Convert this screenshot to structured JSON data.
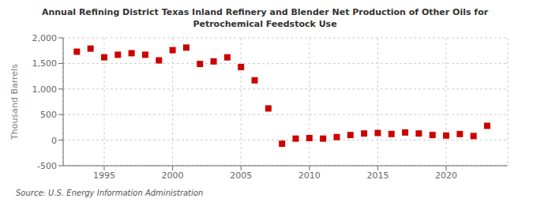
{
  "chart_data": {
    "type": "scatter",
    "title": "Annual Refining District Texas Inland Refinery and Blender Net Production of Other Oils for\nPetrochemical Feedstock Use",
    "ylabel": "Thousand Barrels",
    "annotations": [
      "Source: U.S. Energy Information Administration"
    ],
    "x": [
      1993,
      1994,
      1995,
      1996,
      1997,
      1998,
      1999,
      2000,
      2001,
      2002,
      2003,
      2004,
      2005,
      2006,
      2007,
      2008,
      2009,
      2010,
      2011,
      2012,
      2013,
      2014,
      2015,
      2016,
      2017,
      2018,
      2019,
      2020,
      2021,
      2022,
      2023
    ],
    "values": [
      1730,
      1790,
      1620,
      1670,
      1700,
      1670,
      1560,
      1760,
      1810,
      1490,
      1540,
      1620,
      1430,
      1170,
      620,
      -70,
      30,
      40,
      30,
      60,
      100,
      130,
      140,
      120,
      150,
      130,
      100,
      90,
      120,
      80,
      280
    ],
    "color": "#cc0000",
    "marker": "square",
    "xlim": [
      1992.0,
      2024.5
    ],
    "ylim": [
      -500,
      2000
    ],
    "xticks": [
      1995,
      2000,
      2005,
      2010,
      2015,
      2020
    ],
    "yticks": [
      -500,
      0,
      500,
      {
        "value": 1000,
        "label": "1,000"
      },
      {
        "value": 1500,
        "label": "1,500"
      },
      {
        "value": 2000,
        "label": "2,000"
      }
    ],
    "grid": true
  }
}
